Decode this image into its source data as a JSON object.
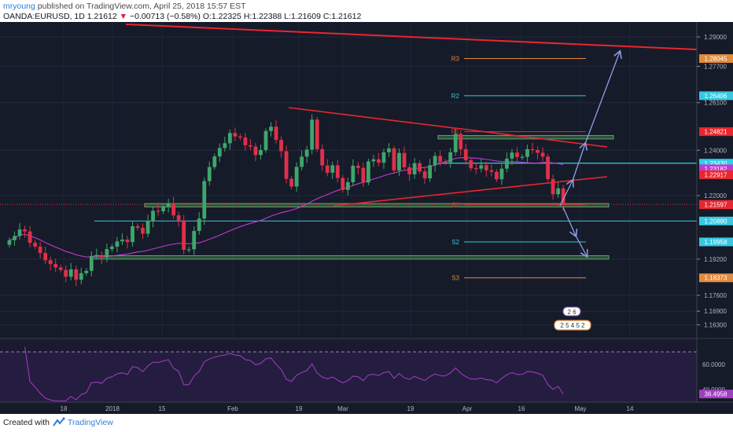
{
  "header": {
    "user": "mryoung",
    "published": "published on TradingView.com, April 25, 2018 15:57 EST",
    "symbol": "OANDA:EURUSD, 1D",
    "last": "1.21612",
    "change": "−0.00713 (−0.58%)",
    "o_label": "O:",
    "o": "1.22325",
    "h_label": "H:",
    "h": "1.22388",
    "l_label": "L:",
    "l": "1.21609",
    "c_label": "C:",
    "c": "1.21612"
  },
  "footer": {
    "created_with": "Created with",
    "brand": "TradingView"
  },
  "colors": {
    "background": "#161b29",
    "up": "#3fa66b",
    "down": "#e0304a",
    "trendline": "#e8262e",
    "ma": "#c23ad3",
    "rsi": "#a23ec4",
    "pivot_r3": "#e38a3c",
    "pivot_r2": "#36c8e0",
    "pivot_r1": "#e8262e",
    "support_zone": "#3f7a4a",
    "arrow": "#8f9fe6",
    "level_line": "#2ed0e6"
  },
  "chart_data": {
    "type": "candlestick",
    "symbol": "EURUSD",
    "interval": "1D",
    "x_axis": {
      "ticks": [
        "18",
        "2018",
        "15",
        "Feb",
        "19",
        "Mar",
        "19",
        "Apr",
        "16",
        "May",
        "14"
      ]
    },
    "y_axis": {
      "range": [
        1.158,
        1.2945
      ],
      "ticks": [
        "1.29000",
        "1.27700",
        "1.26100",
        "1.24000",
        "1.22000",
        "1.19200",
        "1.17600",
        "1.16900",
        "1.16300"
      ],
      "price_labels": [
        {
          "value": 1.28045,
          "text": "1.28045",
          "color": "#e38a3c"
        },
        {
          "value": 1.26406,
          "text": "1.26406",
          "color": "#36c8e0"
        },
        {
          "value": 1.24821,
          "text": "1.24821",
          "color": "#e8262e"
        },
        {
          "value": 1.2343,
          "text": "1.23430",
          "color": "#2ed0e6"
        },
        {
          "value": 1.23182,
          "text": "1.23182",
          "color": "#c23ad3"
        },
        {
          "value": 1.22917,
          "text": "1.22917",
          "color": "#e8262e"
        },
        {
          "value": 1.21612,
          "text": "1.21612",
          "color": "#e0304a"
        },
        {
          "value": 1.21597,
          "text": "1.21597",
          "color": "#e8262e"
        },
        {
          "value": 1.2088,
          "text": "1.20880",
          "color": "#36c8e0"
        },
        {
          "value": 1.19958,
          "text": "1.19958",
          "color": "#36c8e0"
        },
        {
          "value": 1.18373,
          "text": "1.18373",
          "color": "#e38a3c"
        }
      ]
    },
    "pivots": [
      {
        "name": "R3",
        "value": 1.28045,
        "color": "#e38a3c"
      },
      {
        "name": "R2",
        "value": 1.26406,
        "color": "#36c8e0"
      },
      {
        "name": "R1",
        "value": 1.24821,
        "color": "#e8262e"
      },
      {
        "name": "S1",
        "value": 1.21597,
        "color": "#e8262e"
      },
      {
        "name": "S2",
        "value": 1.19958,
        "color": "#36c8e0"
      },
      {
        "name": "S3",
        "value": 1.18373,
        "color": "#e38a3c"
      }
    ],
    "closes": [
      1.2003,
      1.2022,
      1.2051,
      1.2042,
      1.1992,
      1.1975,
      1.1947,
      1.1915,
      1.1898,
      1.1883,
      1.1872,
      1.1842,
      1.1875,
      1.1829,
      1.1858,
      1.1868,
      1.1934,
      1.1938,
      1.1927,
      1.1964,
      1.1975,
      1.1998,
      1.2006,
      1.1995,
      1.2065,
      1.2058,
      1.2032,
      1.2088,
      1.2133,
      1.2131,
      1.2149,
      1.2166,
      1.2113,
      1.2091,
      1.1961,
      1.1963,
      1.2044,
      1.2099,
      1.2264,
      1.2326,
      1.2373,
      1.241,
      1.2431,
      1.2476,
      1.2461,
      1.2456,
      1.2422,
      1.2416,
      1.2379,
      1.2401,
      1.2485,
      1.2504,
      1.2446,
      1.2396,
      1.2274,
      1.224,
      1.2327,
      1.2372,
      1.2403,
      1.2535,
      1.2405,
      1.2333,
      1.2301,
      1.2334,
      1.2278,
      1.2225,
      1.2259,
      1.2332,
      1.2322,
      1.2258,
      1.2351,
      1.236,
      1.2345,
      1.2391,
      1.2408,
      1.2311,
      1.2388,
      1.2325,
      1.2294,
      1.2343,
      1.2307,
      1.2276,
      1.2334,
      1.2375,
      1.2349,
      1.2347,
      1.2391,
      1.2472,
      1.2405,
      1.2356,
      1.2321,
      1.2319,
      1.2334,
      1.2312,
      1.2305,
      1.2272,
      1.2319,
      1.2363,
      1.239,
      1.237,
      1.2371,
      1.2405,
      1.2401,
      1.2389,
      1.2372,
      1.2273,
      1.2206,
      1.2232,
      1.2161
    ],
    "rsi": {
      "period": 14,
      "levels": [
        "60.0000",
        "40.0000"
      ],
      "last": 36.4958,
      "last_label": "36.4958"
    },
    "indicator_badges": [
      "2 6",
      "2 5 4 5 2"
    ]
  }
}
